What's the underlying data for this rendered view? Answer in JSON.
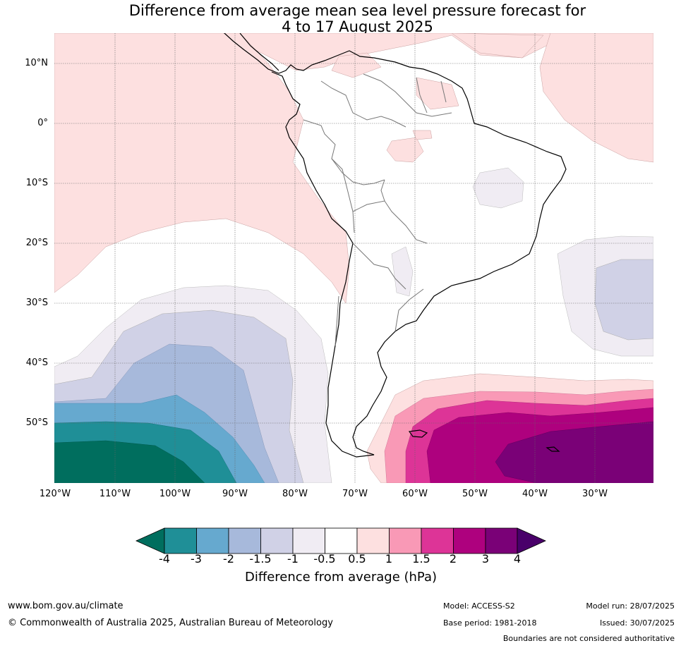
{
  "title_line1": "Difference from average mean sea level pressure forecast for",
  "title_line2": "4 to 17 August 2025",
  "lat_labels": [
    "10°N",
    "0°",
    "10°S",
    "20°S",
    "30°S",
    "40°S",
    "50°S"
  ],
  "lon_labels": [
    "120°W",
    "110°W",
    "100°W",
    "90°W",
    "80°W",
    "70°W",
    "60°W",
    "50°W",
    "40°W",
    "30°W"
  ],
  "legend": {
    "title": "Difference from average (hPa)",
    "ticks": [
      "-4",
      "-3",
      "-2",
      "-1.5",
      "-1",
      "-0.5",
      "0.5",
      "1",
      "1.5",
      "2",
      "3",
      "4"
    ],
    "colors": {
      "below_-4": "#006e5e",
      "-4_-3": "#1f8f97",
      "-3_-2": "#66a9cf",
      "-2_-1.5": "#a7b9db",
      "-1.5_-1": "#d0d1e6",
      "-1_-0.5": "#f0ecf3",
      "-0.5_0.5": "#ffffff",
      "0.5_1": "#fde0e0",
      "1_1.5": "#f999b6",
      "1.5_2": "#dd3497",
      "2_3": "#ae017e",
      "3_4": "#7a0177",
      "above_4": "#49006a"
    }
  },
  "footer": {
    "website": "www.bom.gov.au/climate",
    "copyright": "© Commonwealth of Australia 2025, Australian Bureau of Meteorology",
    "model": "Model: ACCESS-S2",
    "base_period": "Base period: 1981-2018",
    "model_run": "Model run: 28/07/2025",
    "issued": "Issued: 30/07/2025",
    "disclaimer": "Boundaries are not considered authoritative"
  }
}
